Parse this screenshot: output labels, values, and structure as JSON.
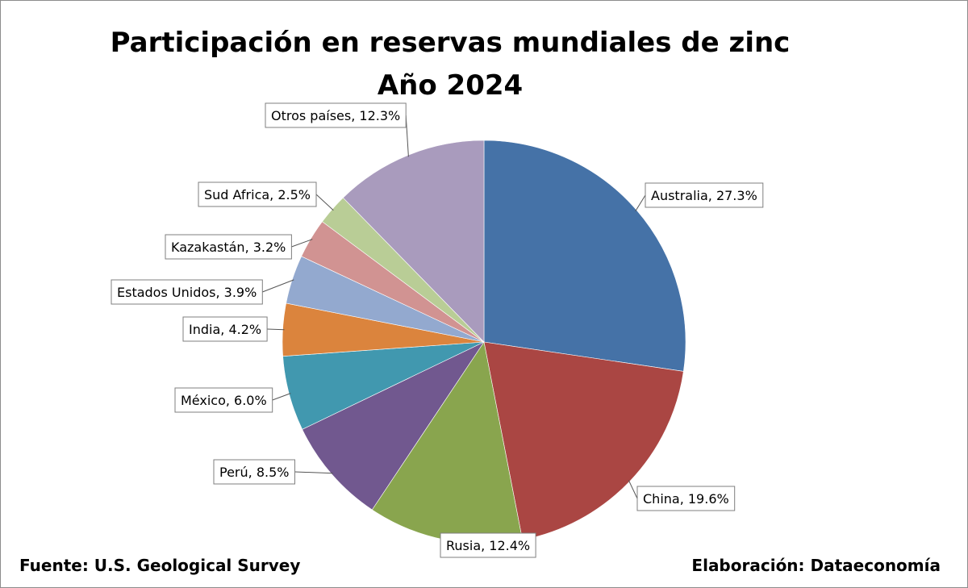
{
  "chart_data": {
    "type": "pie",
    "title": "Participación en reservas mundiales de zinc",
    "subtitle": "Año 2024",
    "unit": "%",
    "slices": [
      {
        "label": "Australia",
        "value": 27.3,
        "display": "Australia, 27.3%",
        "color": "#4572a7"
      },
      {
        "label": "China",
        "value": 19.6,
        "display": "China, 19.6%",
        "color": "#aa4643"
      },
      {
        "label": "Rusia",
        "value": 12.4,
        "display": "Rusia, 12.4%",
        "color": "#89a54e"
      },
      {
        "label": "Perú",
        "value": 8.5,
        "display": "Perú, 8.5%",
        "color": "#71588f"
      },
      {
        "label": "México",
        "value": 6.0,
        "display": "México, 6.0%",
        "color": "#4198af"
      },
      {
        "label": "India",
        "value": 4.2,
        "display": "India, 4.2%",
        "color": "#db843d"
      },
      {
        "label": "Estados Unidos",
        "value": 3.9,
        "display": "Estados Unidos, 3.9%",
        "color": "#93a9cf"
      },
      {
        "label": "Kazakastán",
        "value": 3.2,
        "display": "Kazakastán, 3.2%",
        "color": "#d19392"
      },
      {
        "label": "Sud Africa",
        "value": 2.5,
        "display": "Sud Africa, 2.5%",
        "color": "#b9cd96"
      },
      {
        "label": "Otros países",
        "value": 12.3,
        "display": "Otros países, 12.3%",
        "color": "#a99bbd"
      }
    ]
  },
  "footer": {
    "source": "Fuente: U.S. Geological Survey",
    "credit": "Elaboración: Dataeconomía"
  }
}
